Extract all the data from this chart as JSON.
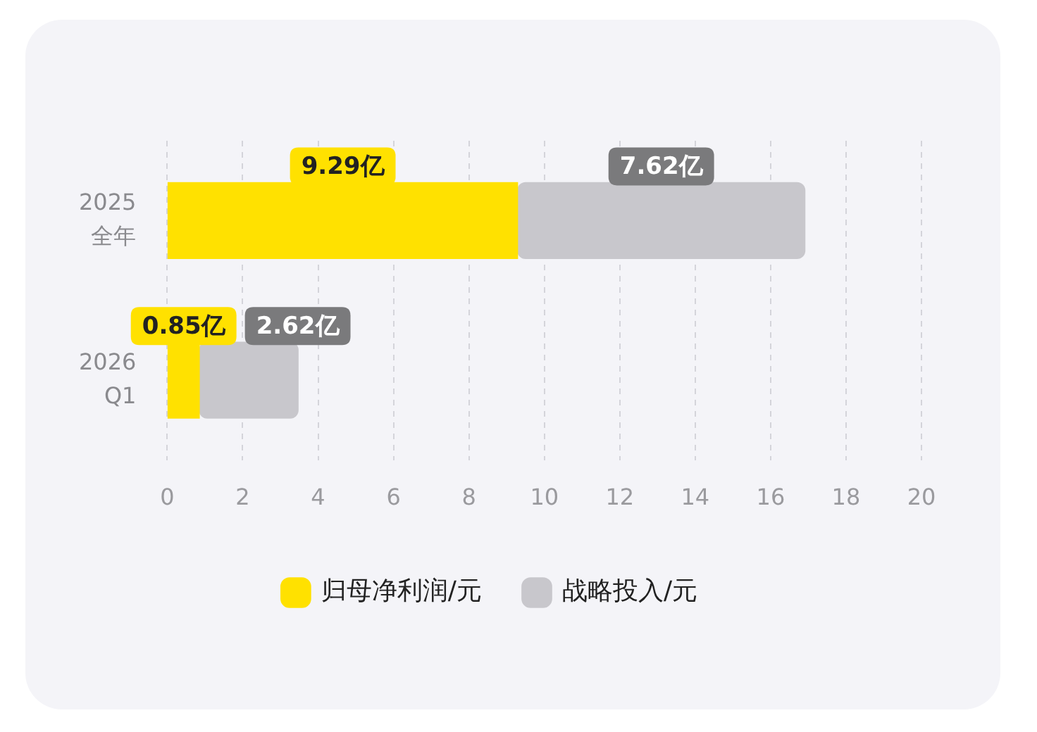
{
  "chart_data": {
    "type": "bar",
    "orientation": "horizontal",
    "stacked": true,
    "categories": [
      "2025\n全年",
      "2026\nQ1"
    ],
    "series": [
      {
        "name": "归母净利润/元",
        "color": "#ffe100",
        "values": [
          9.29,
          0.85
        ],
        "value_labels": [
          "9.29亿",
          "0.85亿"
        ]
      },
      {
        "name": "战略投入/元",
        "color": "#c8c7cc",
        "values": [
          7.62,
          2.62
        ],
        "value_labels": [
          "7.62亿",
          "2.62亿"
        ]
      }
    ],
    "xlim": [
      0,
      20
    ],
    "xticks": [
      0,
      2,
      4,
      6,
      8,
      10,
      12,
      14,
      16,
      18,
      20
    ],
    "grid": "x",
    "legend": "bottom"
  }
}
